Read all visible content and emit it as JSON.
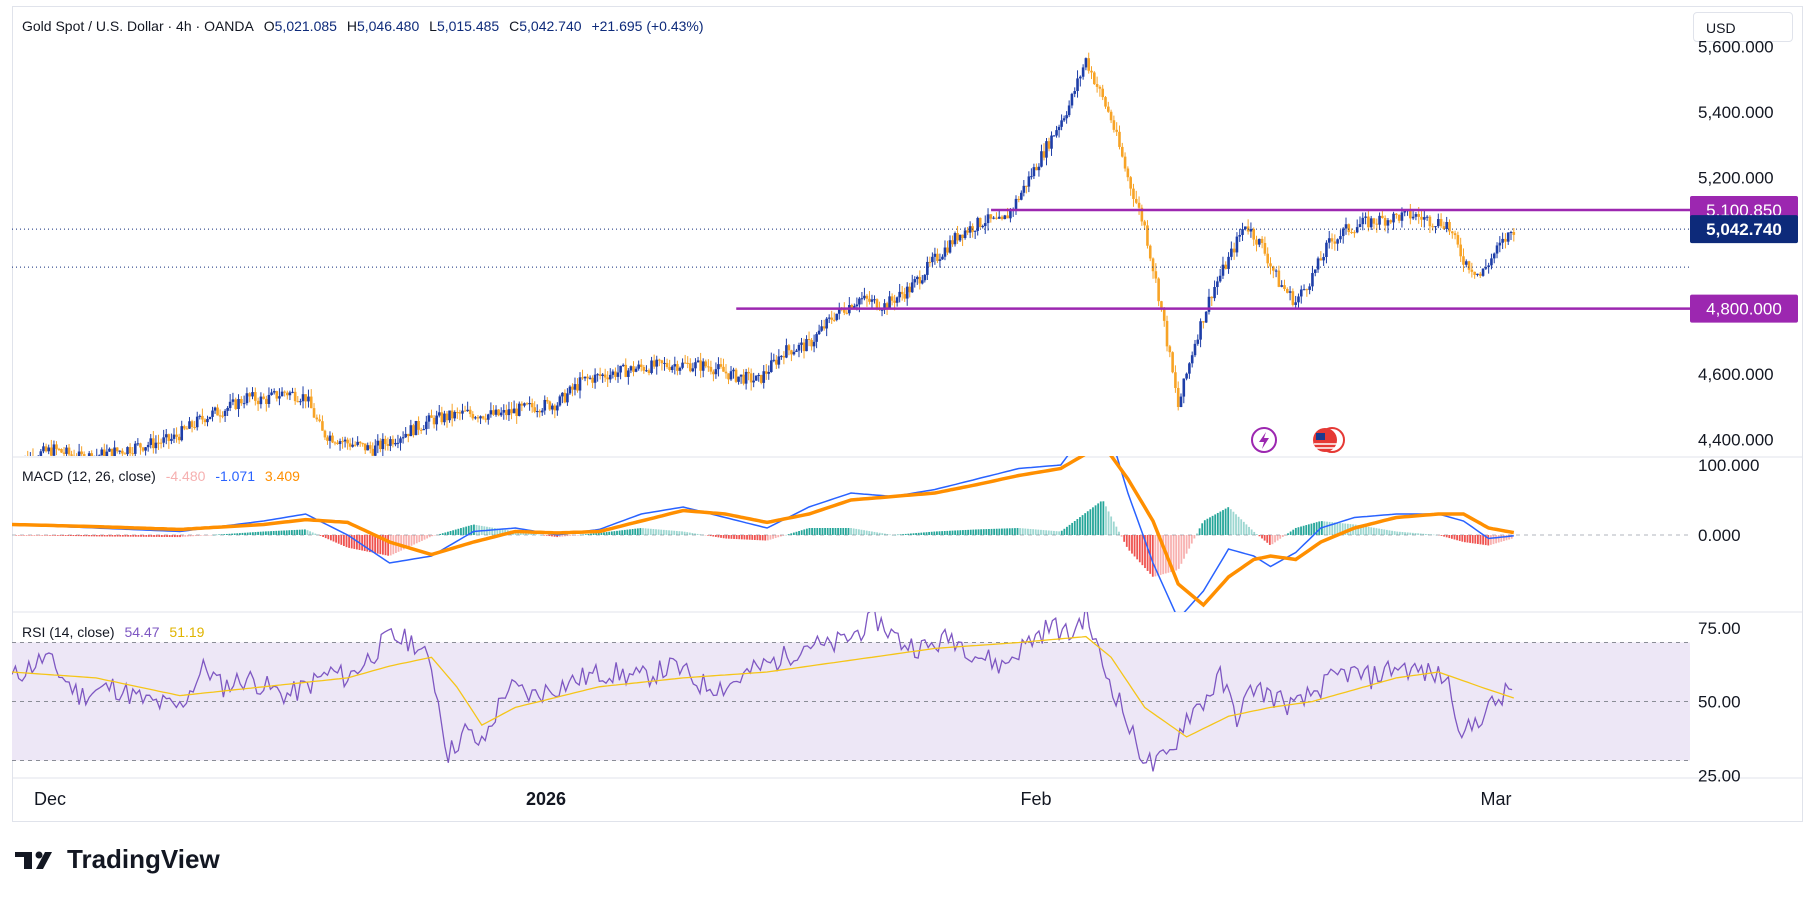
{
  "header": {
    "symbol": "Gold Spot / U.S. Dollar · 4h · OANDA",
    "o_label": "O",
    "o_value": "5,021.085",
    "h_label": "H",
    "h_value": "5,046.480",
    "l_label": "L",
    "l_value": "5,015.485",
    "c_label": "C",
    "c_value": "5,042.740",
    "change": "+21.695 (+0.43%)"
  },
  "currency_button": "USD",
  "brand": "TradingView",
  "colors": {
    "up": "#1e3ea8",
    "down": "#f7a326",
    "level_line": "#9c27b0",
    "price_badge": "#0d2a7a",
    "macd_line": "#2962ff",
    "signal_line": "#ff8f00",
    "hist_up": "#26a69a",
    "hist_down": "#ef5350",
    "rsi_line": "#7e57c2",
    "rsi_ma": "#f5c518",
    "rsi_band": "#ede7f6"
  },
  "chart_data": [
    {
      "type": "candlestick",
      "title": "Gold Spot / U.S. Dollar · 4h · OANDA",
      "x_ticks": [
        "Dec",
        "2026",
        "Feb",
        "Mar"
      ],
      "y_ticks": [
        "5,600.000",
        "5,400.000",
        "5,200.000",
        "4,600.000",
        "4,400.000"
      ],
      "ylim": [
        4350,
        5620
      ],
      "levels": [
        {
          "value": 5100.85,
          "label": "5,100.850"
        },
        {
          "value": 4800.0,
          "label": "4,800.000"
        }
      ],
      "last_price": {
        "value": 5042.74,
        "label": "5,042.740"
      },
      "close_path": [
        [
          0,
          4330
        ],
        [
          10,
          4370
        ],
        [
          16,
          4345
        ],
        [
          22,
          4355
        ],
        [
          30,
          4380
        ],
        [
          38,
          4400
        ],
        [
          46,
          4470
        ],
        [
          52,
          4500
        ],
        [
          56,
          4530
        ],
        [
          60,
          4520
        ],
        [
          65,
          4545
        ],
        [
          70,
          4530
        ],
        [
          74,
          4420
        ],
        [
          80,
          4390
        ],
        [
          86,
          4370
        ],
        [
          92,
          4410
        ],
        [
          100,
          4460
        ],
        [
          108,
          4480
        ],
        [
          116,
          4475
        ],
        [
          124,
          4500
        ],
        [
          130,
          4510
        ],
        [
          136,
          4580
        ],
        [
          142,
          4600
        ],
        [
          150,
          4620
        ],
        [
          158,
          4630
        ],
        [
          166,
          4625
        ],
        [
          172,
          4595
        ],
        [
          178,
          4580
        ],
        [
          184,
          4670
        ],
        [
          190,
          4690
        ],
        [
          196,
          4780
        ],
        [
          202,
          4830
        ],
        [
          208,
          4810
        ],
        [
          214,
          4860
        ],
        [
          220,
          4950
        ],
        [
          226,
          5030
        ],
        [
          232,
          5070
        ],
        [
          236,
          5060
        ],
        [
          240,
          5140
        ],
        [
          246,
          5280
        ],
        [
          252,
          5420
        ],
        [
          256,
          5560
        ],
        [
          258,
          5500
        ],
        [
          262,
          5380
        ],
        [
          266,
          5200
        ],
        [
          270,
          5050
        ],
        [
          274,
          4800
        ],
        [
          278,
          4500
        ],
        [
          282,
          4700
        ],
        [
          286,
          4850
        ],
        [
          290,
          4950
        ],
        [
          294,
          5060
        ],
        [
          298,
          4990
        ],
        [
          302,
          4880
        ],
        [
          306,
          4820
        ],
        [
          310,
          4900
        ],
        [
          314,
          5000
        ],
        [
          318,
          5040
        ],
        [
          322,
          5060
        ],
        [
          326,
          5070
        ],
        [
          330,
          5080
        ],
        [
          334,
          5085
        ],
        [
          338,
          5070
        ],
        [
          342,
          5060
        ],
        [
          346,
          4950
        ],
        [
          350,
          4900
        ],
        [
          354,
          4980
        ],
        [
          358,
          5042.74
        ]
      ],
      "x_range": [
        0,
        400
      ]
    },
    {
      "type": "line",
      "title": "MACD (12, 26, close)",
      "values_text": [
        "-4.480",
        "-1.071",
        "3.409"
      ],
      "y_ticks": [
        "100.000",
        "0.000"
      ],
      "ylim": [
        -110,
        110
      ],
      "series": [
        {
          "name": "MACD",
          "values": [
            [
              0,
              15
            ],
            [
              20,
              10
            ],
            [
              40,
              5
            ],
            [
              60,
              20
            ],
            [
              70,
              30
            ],
            [
              80,
              0
            ],
            [
              90,
              -40
            ],
            [
              100,
              -30
            ],
            [
              110,
              5
            ],
            [
              120,
              10
            ],
            [
              130,
              0
            ],
            [
              140,
              8
            ],
            [
              150,
              30
            ],
            [
              160,
              40
            ],
            [
              170,
              25
            ],
            [
              180,
              10
            ],
            [
              190,
              40
            ],
            [
              200,
              60
            ],
            [
              210,
              55
            ],
            [
              220,
              65
            ],
            [
              230,
              80
            ],
            [
              240,
              95
            ],
            [
              250,
              100
            ],
            [
              260,
              180
            ],
            [
              266,
              60
            ],
            [
              272,
              -40
            ],
            [
              278,
              -120
            ],
            [
              284,
              -80
            ],
            [
              290,
              -20
            ],
            [
              296,
              -30
            ],
            [
              300,
              -45
            ],
            [
              306,
              -25
            ],
            [
              312,
              10
            ],
            [
              320,
              25
            ],
            [
              330,
              30
            ],
            [
              340,
              30
            ],
            [
              346,
              20
            ],
            [
              352,
              -5
            ],
            [
              358,
              -1.071
            ]
          ]
        },
        {
          "name": "Signal",
          "values": [
            [
              0,
              15
            ],
            [
              20,
              12
            ],
            [
              40,
              8
            ],
            [
              60,
              15
            ],
            [
              70,
              22
            ],
            [
              80,
              18
            ],
            [
              90,
              -10
            ],
            [
              100,
              -28
            ],
            [
              110,
              -10
            ],
            [
              120,
              5
            ],
            [
              130,
              3
            ],
            [
              140,
              5
            ],
            [
              150,
              20
            ],
            [
              160,
              35
            ],
            [
              170,
              30
            ],
            [
              180,
              18
            ],
            [
              190,
              30
            ],
            [
              200,
              50
            ],
            [
              210,
              55
            ],
            [
              220,
              60
            ],
            [
              230,
              72
            ],
            [
              240,
              85
            ],
            [
              250,
              95
            ],
            [
              260,
              130
            ],
            [
              266,
              80
            ],
            [
              272,
              20
            ],
            [
              278,
              -70
            ],
            [
              284,
              -100
            ],
            [
              290,
              -60
            ],
            [
              296,
              -35
            ],
            [
              300,
              -30
            ],
            [
              306,
              -35
            ],
            [
              312,
              -10
            ],
            [
              320,
              10
            ],
            [
              330,
              25
            ],
            [
              340,
              30
            ],
            [
              346,
              30
            ],
            [
              352,
              10
            ],
            [
              358,
              3.409
            ]
          ]
        }
      ],
      "x_range": [
        0,
        400
      ]
    },
    {
      "type": "line",
      "title": "RSI (14, close)",
      "values_text": [
        "54.47",
        "51.19"
      ],
      "y_ticks": [
        "75.00",
        "50.00",
        "25.00"
      ],
      "ylim": [
        20,
        80
      ],
      "bands": [
        70,
        50,
        30
      ],
      "series": [
        {
          "name": "RSI",
          "values": [
            [
              0,
              58
            ],
            [
              8,
              65
            ],
            [
              16,
              52
            ],
            [
              24,
              55
            ],
            [
              32,
              50
            ],
            [
              40,
              48
            ],
            [
              46,
              62
            ],
            [
              50,
              55
            ],
            [
              56,
              58
            ],
            [
              62,
              54
            ],
            [
              66,
              52
            ],
            [
              70,
              55
            ],
            [
              76,
              60
            ],
            [
              80,
              58
            ],
            [
              86,
              66
            ],
            [
              90,
              72
            ],
            [
              96,
              70
            ],
            [
              100,
              62
            ],
            [
              104,
              32
            ],
            [
              108,
              40
            ],
            [
              112,
              35
            ],
            [
              118,
              55
            ],
            [
              124,
              52
            ],
            [
              130,
              55
            ],
            [
              136,
              58
            ],
            [
              142,
              60
            ],
            [
              150,
              58
            ],
            [
              158,
              62
            ],
            [
              164,
              56
            ],
            [
              170,
              55
            ],
            [
              176,
              60
            ],
            [
              184,
              65
            ],
            [
              190,
              70
            ],
            [
              194,
              68
            ],
            [
              200,
              72
            ],
            [
              206,
              78
            ],
            [
              212,
              70
            ],
            [
              218,
              68
            ],
            [
              224,
              72
            ],
            [
              230,
              66
            ],
            [
              236,
              62
            ],
            [
              242,
              70
            ],
            [
              248,
              76
            ],
            [
              252,
              72
            ],
            [
              256,
              80
            ],
            [
              260,
              62
            ],
            [
              264,
              50
            ],
            [
              268,
              35
            ],
            [
              272,
              28
            ],
            [
              276,
              32
            ],
            [
              280,
              45
            ],
            [
              284,
              50
            ],
            [
              288,
              58
            ],
            [
              292,
              45
            ],
            [
              296,
              55
            ],
            [
              300,
              52
            ],
            [
              306,
              48
            ],
            [
              312,
              55
            ],
            [
              318,
              60
            ],
            [
              324,
              58
            ],
            [
              330,
              62
            ],
            [
              336,
              60
            ],
            [
              342,
              58
            ],
            [
              346,
              38
            ],
            [
              350,
              45
            ],
            [
              354,
              50
            ],
            [
              358,
              54.47
            ]
          ]
        },
        {
          "name": "RSI MA",
          "values": [
            [
              0,
              60
            ],
            [
              20,
              58
            ],
            [
              40,
              52
            ],
            [
              60,
              55
            ],
            [
              80,
              58
            ],
            [
              90,
              62
            ],
            [
              100,
              65
            ],
            [
              106,
              55
            ],
            [
              112,
              42
            ],
            [
              120,
              48
            ],
            [
              140,
              55
            ],
            [
              160,
              58
            ],
            [
              180,
              60
            ],
            [
              200,
              64
            ],
            [
              220,
              68
            ],
            [
              240,
              70
            ],
            [
              256,
              72
            ],
            [
              262,
              65
            ],
            [
              270,
              48
            ],
            [
              280,
              38
            ],
            [
              290,
              45
            ],
            [
              300,
              48
            ],
            [
              310,
              50
            ],
            [
              320,
              54
            ],
            [
              330,
              58
            ],
            [
              340,
              60
            ],
            [
              350,
              55
            ],
            [
              358,
              51.19
            ]
          ]
        }
      ],
      "x_range": [
        0,
        400
      ]
    }
  ]
}
